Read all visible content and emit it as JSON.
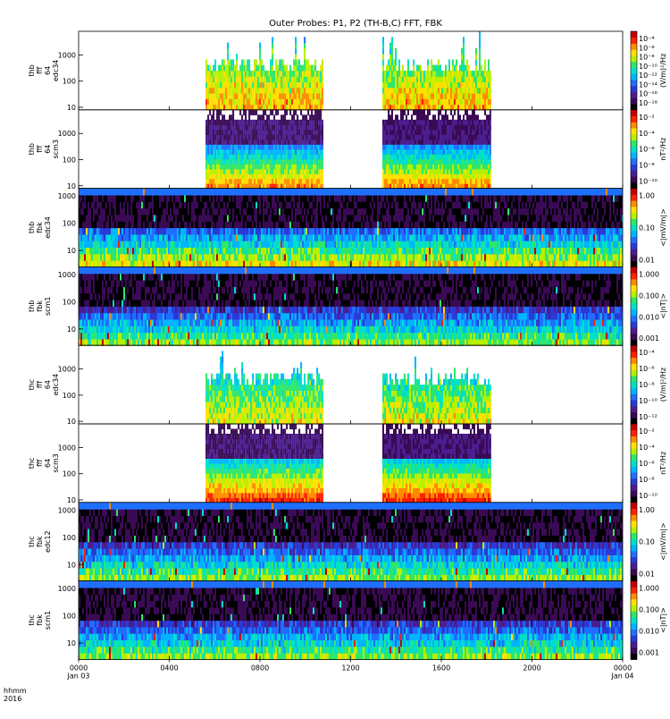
{
  "title": "Outer Probes: P1, P2 (TH-B,C) FFT, FBK",
  "xaxis": {
    "label_line1": "hhmm",
    "label_line2": "2016",
    "ticks": [
      "0000",
      "0400",
      "0800",
      "1200",
      "1600",
      "2000",
      "0000"
    ],
    "tick_hours": [
      0,
      4,
      8,
      12,
      16,
      20,
      24
    ],
    "date_labels": [
      {
        "text": "Jan 03",
        "hour": 0
      },
      {
        "text": "Jan 04",
        "hour": 24
      }
    ]
  },
  "colors": {
    "colormap": [
      "#000000",
      "#3a0a55",
      "#4b1e8f",
      "#2a3ad6",
      "#1f6fff",
      "#00b4ff",
      "#00e0c8",
      "#2ee66a",
      "#b6f000",
      "#ffe000",
      "#ff8a00",
      "#ff2000",
      "#c40000"
    ]
  },
  "chart_data": [
    {
      "type": "heatmap",
      "name": "thb_fff_64_edc34",
      "ylabel": [
        "thb",
        "fff",
        "64",
        "edc34"
      ],
      "y_ticks": [
        "10",
        "100",
        "1000"
      ],
      "y_tick_values": [
        10,
        100,
        1000
      ],
      "ylim": [
        8,
        8000
      ],
      "ylog": true,
      "cbar_ticks": [
        "10⁻¹⁸",
        "10⁻¹⁶",
        "10⁻¹⁴",
        "10⁻¹²",
        "10⁻¹⁰",
        "10⁻⁸",
        "10⁻⁶",
        "10⁻⁴"
      ],
      "cbar_label": "(V/m)²/Hz",
      "data_intervals_hours": [
        [
          5.6,
          10.8
        ],
        [
          13.4,
          18.2
        ]
      ],
      "style": "burst",
      "intensity": "mid"
    },
    {
      "type": "heatmap",
      "name": "thb_fff_64_scm3",
      "ylabel": [
        "thb",
        "fff",
        "64",
        "scm3"
      ],
      "y_ticks": [
        "10",
        "100",
        "1000"
      ],
      "y_tick_values": [
        10,
        100,
        1000
      ],
      "ylim": [
        8,
        8000
      ],
      "ylog": true,
      "cbar_ticks": [
        "10⁻¹⁰",
        "10⁻⁸",
        "10⁻⁶",
        "10⁻⁴",
        "10⁻²"
      ],
      "cbar_label": "nT²/Hz",
      "data_intervals_hours": [
        [
          5.6,
          10.8
        ],
        [
          13.4,
          18.2
        ]
      ],
      "style": "banded",
      "intensity": "low"
    },
    {
      "type": "heatmap",
      "name": "thb_fbk_edc34",
      "ylabel": [
        "thb",
        "fbk",
        "edc34"
      ],
      "y_ticks": [
        "10",
        "100",
        "1000"
      ],
      "y_tick_values": [
        10,
        100,
        1000
      ],
      "ylim": [
        2.5,
        1900
      ],
      "ylog": true,
      "cbar_ticks": [
        "0.01",
        "0.10",
        "1.00"
      ],
      "cbar_tick_values": [
        0.01,
        0.1,
        1.0
      ],
      "cbar_label": "<|mV/m|>",
      "data_intervals_hours": [
        [
          0,
          24
        ]
      ],
      "style": "fbk",
      "intensity": "mid"
    },
    {
      "type": "heatmap",
      "name": "thb_fbk_scm1",
      "ylabel": [
        "thb",
        "fbk",
        "scm1"
      ],
      "y_ticks": [
        "10",
        "100",
        "1000"
      ],
      "y_tick_values": [
        10,
        100,
        1000
      ],
      "ylim": [
        2.5,
        1900
      ],
      "ylog": true,
      "cbar_ticks": [
        "0.001",
        "0.010",
        "0.100",
        "1.000"
      ],
      "cbar_tick_values": [
        0.001,
        0.01,
        0.1,
        1.0
      ],
      "cbar_label": "<|nT|>",
      "data_intervals_hours": [
        [
          0,
          24
        ]
      ],
      "style": "fbk",
      "intensity": "low"
    },
    {
      "type": "heatmap",
      "name": "thc_fff_64_edc34",
      "ylabel": [
        "thc",
        "fff",
        "64",
        "edc34"
      ],
      "y_ticks": [
        "10",
        "100",
        "1000"
      ],
      "y_tick_values": [
        10,
        100,
        1000
      ],
      "ylim": [
        8,
        8000
      ],
      "ylog": true,
      "cbar_ticks": [
        "10⁻¹²",
        "10⁻¹⁰",
        "10⁻⁸",
        "10⁻⁶",
        "10⁻⁴"
      ],
      "cbar_label": "(V/m)²/Hz",
      "data_intervals_hours": [
        [
          5.6,
          10.8
        ],
        [
          13.4,
          18.2
        ]
      ],
      "style": "burst",
      "intensity": "low"
    },
    {
      "type": "heatmap",
      "name": "thc_fff_64_scm3",
      "ylabel": [
        "thc",
        "fff",
        "64",
        "scm3"
      ],
      "y_ticks": [
        "10",
        "100",
        "1000"
      ],
      "y_tick_values": [
        10,
        100,
        1000
      ],
      "ylim": [
        8,
        8000
      ],
      "ylog": true,
      "cbar_ticks": [
        "10⁻¹⁰",
        "10⁻⁸",
        "10⁻⁶",
        "10⁻⁴",
        "10⁻²"
      ],
      "cbar_label": "nT²/Hz",
      "data_intervals_hours": [
        [
          5.6,
          10.8
        ],
        [
          13.4,
          18.2
        ]
      ],
      "style": "banded",
      "intensity": "mid"
    },
    {
      "type": "heatmap",
      "name": "thc_fbk_edc12",
      "ylabel": [
        "thc",
        "fbk",
        "edc12"
      ],
      "y_ticks": [
        "10",
        "100",
        "1000"
      ],
      "y_tick_values": [
        10,
        100,
        1000
      ],
      "ylim": [
        2.5,
        1900
      ],
      "ylog": true,
      "cbar_ticks": [
        "0.01",
        "0.10",
        "1.00"
      ],
      "cbar_tick_values": [
        0.01,
        0.1,
        1.0
      ],
      "cbar_label": "<|mV/m|>",
      "data_intervals_hours": [
        [
          0,
          24
        ]
      ],
      "style": "fbk",
      "intensity": "low"
    },
    {
      "type": "heatmap",
      "name": "thc_fbk_scm1",
      "ylabel": [
        "thc",
        "fbk",
        "scm1"
      ],
      "y_ticks": [
        "10",
        "100",
        "1000"
      ],
      "y_tick_values": [
        10,
        100,
        1000
      ],
      "ylim": [
        2.5,
        1900
      ],
      "ylog": true,
      "cbar_ticks": [
        "0.001",
        "0.010",
        "0.100",
        "1.000"
      ],
      "cbar_tick_values": [
        0.001,
        0.01,
        0.1,
        1.0
      ],
      "cbar_label": "<|nT|>",
      "data_intervals_hours": [
        [
          0,
          24
        ]
      ],
      "style": "fbk",
      "intensity": "low"
    }
  ]
}
